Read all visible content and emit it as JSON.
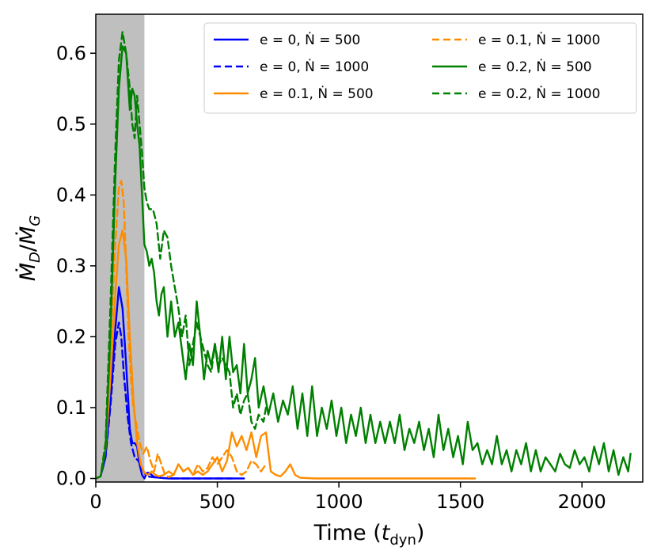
{
  "chart_data": {
    "type": "line",
    "title": "",
    "xlabel": "Time (t_dyn)",
    "xlabel_main": "Time (",
    "xlabel_sym": "t",
    "xlabel_sub": "dyn",
    "xlabel_close": ")",
    "ylabel": "Ṁ_D/Ṁ_G",
    "ylabel_top": "Ṁ",
    "ylabel_top_sub": "D",
    "ylabel_slash": "/",
    "ylabel_bottom": "Ṁ",
    "ylabel_bottom_sub": "G",
    "xlim": [
      0,
      2250
    ],
    "ylim": [
      -0.005,
      0.655
    ],
    "xticks": [
      0,
      500,
      1000,
      1500,
      2000
    ],
    "xtick_labels": [
      "0",
      "500",
      "1000",
      "1500",
      "2000"
    ],
    "yticks": [
      0.0,
      0.1,
      0.2,
      0.3,
      0.4,
      0.5,
      0.6
    ],
    "ytick_labels": [
      "0.0",
      "0.1",
      "0.2",
      "0.3",
      "0.4",
      "0.5",
      "0.6"
    ],
    "shaded_region": {
      "x_start": 0,
      "x_end": 200,
      "color": "#bfbfbf"
    },
    "legend_position": "top-right",
    "legend_columns": 2,
    "series": [
      {
        "name": "e = 0, Ṅ = 500",
        "color": "#0000ff",
        "dash": false,
        "x": [
          0,
          20,
          40,
          60,
          80,
          95,
          110,
          125,
          140,
          150,
          160,
          170,
          180,
          190,
          200,
          210,
          220,
          240,
          260,
          300,
          400,
          500,
          600,
          610
        ],
        "y": [
          0.0,
          0.003,
          0.03,
          0.11,
          0.21,
          0.27,
          0.24,
          0.16,
          0.07,
          0.05,
          0.05,
          0.045,
          0.02,
          0.005,
          0.0,
          0.008,
          0.008,
          0.002,
          0.001,
          0.0,
          0.0,
          0.0,
          0.0,
          0.0
        ]
      },
      {
        "name": "e = 0, Ṅ = 1000",
        "color": "#0000ff",
        "dash": true,
        "x": [
          0,
          20,
          40,
          60,
          80,
          95,
          105,
          115,
          130,
          145,
          160,
          175,
          190,
          200,
          210,
          230,
          260,
          300,
          400,
          500,
          560
        ],
        "y": [
          0.0,
          0.003,
          0.03,
          0.1,
          0.19,
          0.22,
          0.2,
          0.15,
          0.09,
          0.05,
          0.03,
          0.025,
          0.015,
          0.008,
          0.003,
          0.002,
          0.001,
          0.0,
          0.0,
          0.0,
          0.0
        ]
      },
      {
        "name": "e = 0.1, Ṅ = 500",
        "color": "#ff8c00",
        "dash": false,
        "x": [
          0,
          20,
          40,
          60,
          80,
          95,
          110,
          125,
          140,
          155,
          170,
          185,
          200,
          215,
          230,
          245,
          260,
          280,
          300,
          320,
          340,
          360,
          380,
          400,
          420,
          440,
          460,
          480,
          500,
          520,
          540,
          560,
          580,
          600,
          620,
          640,
          660,
          680,
          700,
          720,
          740,
          760,
          780,
          800,
          820,
          840,
          900,
          1000,
          1100,
          1200,
          1300,
          1400,
          1500,
          1560
        ],
        "y": [
          0.0,
          0.003,
          0.04,
          0.14,
          0.26,
          0.33,
          0.35,
          0.31,
          0.2,
          0.11,
          0.05,
          0.02,
          0.008,
          0.005,
          0.01,
          0.005,
          0.003,
          0.005,
          0.01,
          0.005,
          0.02,
          0.01,
          0.015,
          0.005,
          0.01,
          0.005,
          0.01,
          0.02,
          0.03,
          0.01,
          0.025,
          0.065,
          0.045,
          0.06,
          0.04,
          0.065,
          0.03,
          0.06,
          0.065,
          0.01,
          0.005,
          0.003,
          0.01,
          0.02,
          0.005,
          0.001,
          0.0,
          0.0,
          0.0,
          0.0,
          0.0,
          0.0,
          0.0,
          0.0
        ]
      },
      {
        "name": "e = 0.1, Ṅ = 1000",
        "color": "#ff8c00",
        "dash": true,
        "x": [
          0,
          20,
          40,
          60,
          80,
          95,
          105,
          115,
          125,
          135,
          145,
          155,
          165,
          175,
          185,
          195,
          210,
          225,
          240,
          255,
          270,
          285,
          300,
          320,
          340,
          360,
          380,
          400,
          420,
          440,
          460,
          480,
          500,
          520,
          540,
          560,
          580,
          600,
          620,
          640,
          660,
          680,
          700
        ],
        "y": [
          0.0,
          0.003,
          0.05,
          0.18,
          0.33,
          0.41,
          0.42,
          0.39,
          0.3,
          0.2,
          0.14,
          0.1,
          0.08,
          0.06,
          0.045,
          0.035,
          0.045,
          0.025,
          0.01,
          0.035,
          0.02,
          0.005,
          0.002,
          0.005,
          0.02,
          0.01,
          0.015,
          0.005,
          0.02,
          0.01,
          0.015,
          0.03,
          0.02,
          0.03,
          0.04,
          0.03,
          0.01,
          0.005,
          0.01,
          0.025,
          0.02,
          0.01,
          0.02
        ]
      },
      {
        "name": "e = 0.2, Ṅ = 500",
        "color": "#008000",
        "dash": false,
        "x": [
          0,
          20,
          40,
          60,
          80,
          95,
          110,
          125,
          140,
          150,
          160,
          170,
          180,
          190,
          200,
          210,
          220,
          230,
          240,
          250,
          260,
          270,
          280,
          295,
          310,
          325,
          340,
          355,
          370,
          385,
          400,
          415,
          430,
          445,
          460,
          475,
          490,
          505,
          520,
          535,
          550,
          565,
          580,
          595,
          610,
          625,
          640,
          655,
          670,
          690,
          710,
          730,
          750,
          770,
          790,
          810,
          830,
          850,
          870,
          890,
          910,
          930,
          950,
          970,
          990,
          1010,
          1030,
          1050,
          1070,
          1090,
          1110,
          1130,
          1150,
          1170,
          1190,
          1210,
          1230,
          1250,
          1270,
          1290,
          1310,
          1330,
          1350,
          1370,
          1390,
          1410,
          1430,
          1450,
          1470,
          1490,
          1510,
          1530,
          1550,
          1570,
          1590,
          1610,
          1630,
          1650,
          1670,
          1690,
          1710,
          1730,
          1750,
          1770,
          1790,
          1810,
          1830,
          1850,
          1870,
          1890,
          1910,
          1930,
          1950,
          1970,
          1990,
          2010,
          2030,
          2050,
          2070,
          2090,
          2110,
          2130,
          2150,
          2170,
          2190,
          2200
        ],
        "y": [
          0.0,
          0.003,
          0.04,
          0.2,
          0.42,
          0.55,
          0.61,
          0.6,
          0.52,
          0.55,
          0.54,
          0.5,
          0.47,
          0.4,
          0.33,
          0.32,
          0.3,
          0.31,
          0.29,
          0.25,
          0.23,
          0.26,
          0.27,
          0.2,
          0.25,
          0.2,
          0.22,
          0.18,
          0.14,
          0.19,
          0.16,
          0.25,
          0.2,
          0.14,
          0.18,
          0.16,
          0.19,
          0.15,
          0.2,
          0.14,
          0.2,
          0.15,
          0.16,
          0.12,
          0.19,
          0.12,
          0.14,
          0.17,
          0.1,
          0.13,
          0.09,
          0.12,
          0.08,
          0.11,
          0.09,
          0.13,
          0.07,
          0.12,
          0.06,
          0.13,
          0.06,
          0.1,
          0.07,
          0.11,
          0.06,
          0.1,
          0.05,
          0.09,
          0.06,
          0.1,
          0.05,
          0.09,
          0.05,
          0.08,
          0.05,
          0.08,
          0.05,
          0.09,
          0.04,
          0.07,
          0.05,
          0.08,
          0.04,
          0.07,
          0.03,
          0.09,
          0.04,
          0.07,
          0.03,
          0.06,
          0.02,
          0.08,
          0.04,
          0.05,
          0.02,
          0.04,
          0.02,
          0.06,
          0.02,
          0.04,
          0.01,
          0.04,
          0.02,
          0.05,
          0.01,
          0.04,
          0.01,
          0.03,
          0.02,
          0.01,
          0.035,
          0.02,
          0.015,
          0.04,
          0.02,
          0.03,
          0.01,
          0.045,
          0.02,
          0.05,
          0.01,
          0.04,
          0.005,
          0.03,
          0.01,
          0.035
        ]
      },
      {
        "name": "e = 0.2, Ṅ = 1000",
        "color": "#008000",
        "dash": true,
        "x": [
          0,
          20,
          40,
          60,
          80,
          95,
          110,
          125,
          140,
          150,
          160,
          170,
          180,
          190,
          200,
          210,
          220,
          235,
          250,
          265,
          280,
          295,
          310,
          325,
          340,
          355,
          370,
          385,
          400,
          415,
          430,
          445,
          460,
          475,
          490,
          505,
          520,
          535,
          550,
          565,
          580,
          595,
          610,
          625,
          640,
          655,
          670,
          690,
          700
        ],
        "y": [
          0.0,
          0.003,
          0.05,
          0.24,
          0.46,
          0.59,
          0.63,
          0.6,
          0.55,
          0.5,
          0.48,
          0.54,
          0.5,
          0.46,
          0.41,
          0.39,
          0.38,
          0.38,
          0.36,
          0.31,
          0.35,
          0.34,
          0.3,
          0.27,
          0.24,
          0.2,
          0.23,
          0.16,
          0.19,
          0.22,
          0.2,
          0.18,
          0.16,
          0.15,
          0.19,
          0.16,
          0.17,
          0.16,
          0.15,
          0.1,
          0.12,
          0.09,
          0.11,
          0.12,
          0.08,
          0.07,
          0.09,
          0.08,
          0.1
        ]
      }
    ]
  }
}
